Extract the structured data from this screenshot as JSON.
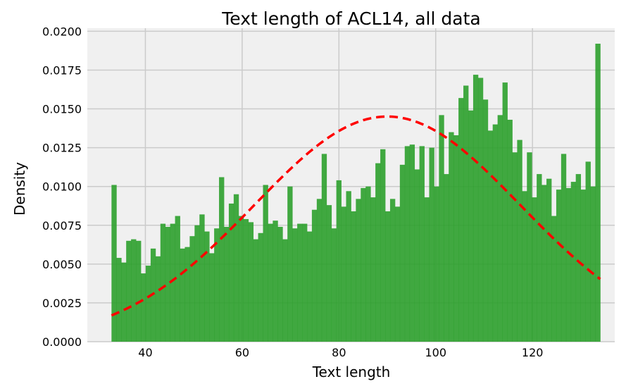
{
  "chart_data": {
    "type": "bar",
    "title": "Text length of ACL14, all data",
    "xlabel": "Text length",
    "ylabel": "Density",
    "xlim": [
      28,
      137
    ],
    "ylim": [
      0,
      0.0202
    ],
    "x_ticks": [
      40,
      60,
      80,
      100,
      120
    ],
    "x_tick_labels": [
      "40",
      "60",
      "80",
      "100",
      "120"
    ],
    "y_ticks": [
      0,
      0.0025,
      0.005,
      0.0075,
      0.01,
      0.0125,
      0.015,
      0.0175,
      0.02
    ],
    "y_tick_labels": [
      "0.0000",
      "0.0025",
      "0.0050",
      "0.0075",
      "0.0100",
      "0.0125",
      "0.0150",
      "0.0175",
      "0.0200"
    ],
    "grid": true,
    "bins": {
      "start": 33,
      "end": 134,
      "count": 100
    },
    "series": [
      {
        "type": "histogram",
        "color": "#2ca02c",
        "values": [
          0.0101,
          0.0054,
          0.0051,
          0.0065,
          0.0066,
          0.0065,
          0.0044,
          0.0049,
          0.006,
          0.0055,
          0.0076,
          0.0074,
          0.0076,
          0.0081,
          0.006,
          0.0061,
          0.0068,
          0.0075,
          0.0082,
          0.0071,
          0.0057,
          0.0073,
          0.0106,
          0.0074,
          0.0089,
          0.0095,
          0.0081,
          0.0079,
          0.0077,
          0.0066,
          0.007,
          0.0101,
          0.0076,
          0.0078,
          0.0074,
          0.0066,
          0.01,
          0.0073,
          0.0076,
          0.0076,
          0.0071,
          0.0085,
          0.0092,
          0.0121,
          0.0088,
          0.0073,
          0.0104,
          0.0087,
          0.0097,
          0.0084,
          0.0092,
          0.0099,
          0.01,
          0.0093,
          0.0115,
          0.0124,
          0.0084,
          0.0092,
          0.0087,
          0.0114,
          0.0126,
          0.0127,
          0.0111,
          0.0126,
          0.0093,
          0.0125,
          0.01,
          0.0146,
          0.0108,
          0.0135,
          0.0133,
          0.0157,
          0.0165,
          0.0149,
          0.0172,
          0.017,
          0.0156,
          0.0136,
          0.014,
          0.0146,
          0.0167,
          0.0143,
          0.0122,
          0.013,
          0.0097,
          0.0122,
          0.0093,
          0.0108,
          0.0101,
          0.0105,
          0.0081,
          0.0098,
          0.0121,
          0.0099,
          0.0103,
          0.0108,
          0.0098,
          0.0116,
          0.01,
          0.0192
        ]
      },
      {
        "type": "line",
        "style": "dashed",
        "color": "#ff0000",
        "mean": 90,
        "std": 27.5
      }
    ]
  }
}
